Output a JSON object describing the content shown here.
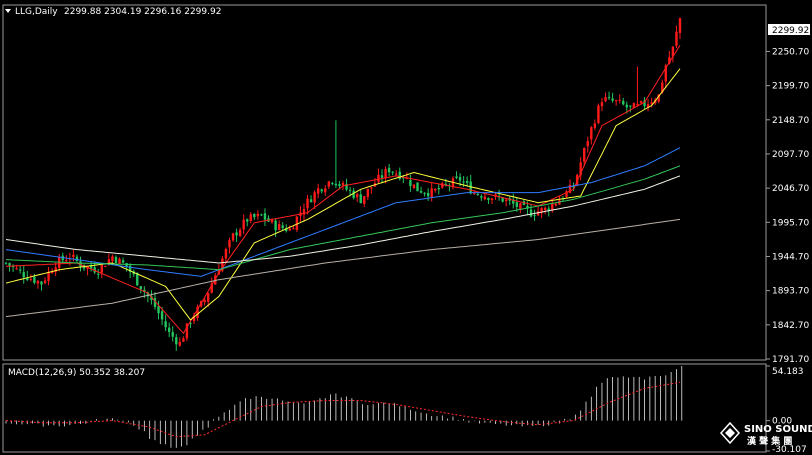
{
  "header": {
    "symbol": "LLG,Daily",
    "ohlc": "2299.88 2304.19 2296.16 2299.92"
  },
  "current_price_label": "2299.92",
  "macd_header": "MACD(12,26,9) 50.352 38.207",
  "watermark": {
    "brand": "SINO SOUND",
    "sub": "漢 聲 集 團"
  },
  "colors": {
    "background": "#000000",
    "bull": "#ff1a1a",
    "bear": "#22c55e",
    "ma_fast": "#ff2020",
    "ma_yellow": "#ffff40",
    "ma_blue": "#2f7cff",
    "ma_green": "#34c759",
    "ma_white": "#f2f2e6",
    "ma_gray": "#b8b0a8",
    "macd_hist": "#e8e8e8",
    "macd_signal": "#ff2a2a",
    "axis_text": "#ffffff"
  },
  "chart_data": [
    {
      "type": "candlestick",
      "title": "LLG,Daily",
      "ylim": [
        1791.7,
        2320
      ],
      "y_ticks": [
        {
          "value": 2250.7,
          "label": "2250.70"
        },
        {
          "value": 2199.7,
          "label": "2199.70"
        },
        {
          "value": 2148.7,
          "label": "2148.70"
        },
        {
          "value": 2097.7,
          "label": "2097.70"
        },
        {
          "value": 2046.7,
          "label": "2046.70"
        },
        {
          "value": 1995.7,
          "label": "1995.70"
        },
        {
          "value": 1944.7,
          "label": "1944.70"
        },
        {
          "value": 1893.7,
          "label": "1893.70"
        },
        {
          "value": 1842.7,
          "label": "1842.70"
        },
        {
          "value": 1791.7,
          "label": "1791.70"
        }
      ],
      "close_waypoints": [
        [
          0,
          1935
        ],
        [
          6,
          1915
        ],
        [
          10,
          1905
        ],
        [
          14,
          1935
        ],
        [
          18,
          1945
        ],
        [
          22,
          1930
        ],
        [
          26,
          1925
        ],
        [
          30,
          1945
        ],
        [
          34,
          1930
        ],
        [
          38,
          1900
        ],
        [
          42,
          1870
        ],
        [
          46,
          1830
        ],
        [
          49,
          1815
        ],
        [
          52,
          1850
        ],
        [
          56,
          1880
        ],
        [
          60,
          1930
        ],
        [
          64,
          1975
        ],
        [
          68,
          2000
        ],
        [
          72,
          2005
        ],
        [
          76,
          1990
        ],
        [
          80,
          1985
        ],
        [
          84,
          2020
        ],
        [
          88,
          2045
        ],
        [
          92,
          2060
        ],
        [
          96,
          2045
        ],
        [
          100,
          2030
        ],
        [
          104,
          2055
        ],
        [
          108,
          2075
        ],
        [
          112,
          2065
        ],
        [
          116,
          2045
        ],
        [
          120,
          2040
        ],
        [
          124,
          2050
        ],
        [
          128,
          2060
        ],
        [
          132,
          2040
        ],
        [
          136,
          2035
        ],
        [
          140,
          2030
        ],
        [
          144,
          2020
        ],
        [
          148,
          2010
        ],
        [
          152,
          2015
        ],
        [
          156,
          2030
        ],
        [
          160,
          2050
        ],
        [
          164,
          2120
        ],
        [
          168,
          2180
        ],
        [
          172,
          2175
        ],
        [
          176,
          2165
        ],
        [
          180,
          2172
        ],
        [
          184,
          2185
        ],
        [
          186,
          2230
        ],
        [
          188,
          2255
        ],
        [
          190,
          2300
        ]
      ],
      "ma_lines": [
        {
          "key": "ma_fast",
          "points": [
            [
              0,
              1930
            ],
            [
              20,
              1935
            ],
            [
              40,
              1890
            ],
            [
              50,
              1830
            ],
            [
              60,
              1920
            ],
            [
              70,
              1995
            ],
            [
              85,
              2010
            ],
            [
              95,
              2050
            ],
            [
              110,
              2065
            ],
            [
              130,
              2045
            ],
            [
              150,
              2020
            ],
            [
              160,
              2045
            ],
            [
              168,
              2140
            ],
            [
              180,
              2175
            ],
            [
              190,
              2260
            ]
          ]
        },
        {
          "key": "ma_yellow",
          "points": [
            [
              0,
              1905
            ],
            [
              15,
              1925
            ],
            [
              30,
              1935
            ],
            [
              45,
              1900
            ],
            [
              52,
              1850
            ],
            [
              60,
              1885
            ],
            [
              70,
              1965
            ],
            [
              85,
              2000
            ],
            [
              100,
              2045
            ],
            [
              115,
              2070
            ],
            [
              130,
              2050
            ],
            [
              150,
              2025
            ],
            [
              162,
              2035
            ],
            [
              172,
              2140
            ],
            [
              182,
              2170
            ],
            [
              190,
              2225
            ]
          ]
        },
        {
          "key": "ma_blue",
          "points": [
            [
              0,
              1955
            ],
            [
              20,
              1940
            ],
            [
              40,
              1925
            ],
            [
              55,
              1915
            ],
            [
              70,
              1945
            ],
            [
              90,
              1985
            ],
            [
              110,
              2025
            ],
            [
              130,
              2040
            ],
            [
              150,
              2040
            ],
            [
              165,
              2055
            ],
            [
              180,
              2080
            ],
            [
              190,
              2107
            ]
          ]
        },
        {
          "key": "ma_green",
          "points": [
            [
              0,
              1940
            ],
            [
              20,
              1935
            ],
            [
              40,
              1932
            ],
            [
              60,
              1925
            ],
            [
              80,
              1955
            ],
            [
              100,
              1975
            ],
            [
              120,
              1995
            ],
            [
              140,
              2010
            ],
            [
              160,
              2030
            ],
            [
              180,
              2060
            ],
            [
              190,
              2080
            ]
          ]
        },
        {
          "key": "ma_white",
          "points": [
            [
              0,
              1970
            ],
            [
              20,
              1955
            ],
            [
              40,
              1945
            ],
            [
              60,
              1935
            ],
            [
              80,
              1945
            ],
            [
              100,
              1962
            ],
            [
              120,
              1982
            ],
            [
              140,
              2000
            ],
            [
              160,
              2020
            ],
            [
              180,
              2045
            ],
            [
              190,
              2065
            ]
          ]
        },
        {
          "key": "ma_gray",
          "points": [
            [
              0,
              1855
            ],
            [
              30,
              1875
            ],
            [
              60,
              1910
            ],
            [
              90,
              1935
            ],
            [
              120,
              1955
            ],
            [
              150,
              1970
            ],
            [
              170,
              1985
            ],
            [
              190,
              2000
            ]
          ]
        }
      ]
    },
    {
      "type": "bar",
      "title": "MACD(12,26,9)",
      "series": [
        {
          "name": "MACD",
          "value": 50.352
        },
        {
          "name": "Signal",
          "value": 38.207
        }
      ],
      "ylim": [
        -30.107,
        54.183
      ],
      "y_ticks": [
        {
          "value": 54.183,
          "label": "54.183"
        },
        {
          "value": 0.0,
          "label": "0.00"
        },
        {
          "value": -30.107,
          "label": "-30.107"
        }
      ],
      "hist_waypoints": [
        [
          0,
          -2
        ],
        [
          8,
          -4
        ],
        [
          16,
          -5
        ],
        [
          22,
          -3
        ],
        [
          28,
          2
        ],
        [
          34,
          0
        ],
        [
          38,
          -8
        ],
        [
          42,
          -20
        ],
        [
          47,
          -28
        ],
        [
          52,
          -22
        ],
        [
          56,
          -10
        ],
        [
          60,
          4
        ],
        [
          64,
          14
        ],
        [
          68,
          22
        ],
        [
          72,
          24
        ],
        [
          76,
          22
        ],
        [
          80,
          18
        ],
        [
          84,
          16
        ],
        [
          88,
          20
        ],
        [
          92,
          26
        ],
        [
          96,
          24
        ],
        [
          100,
          18
        ],
        [
          104,
          16
        ],
        [
          108,
          18
        ],
        [
          112,
          14
        ],
        [
          116,
          10
        ],
        [
          120,
          6
        ],
        [
          124,
          4
        ],
        [
          128,
          2
        ],
        [
          132,
          -2
        ],
        [
          136,
          -3
        ],
        [
          140,
          -4
        ],
        [
          144,
          -5
        ],
        [
          148,
          -6
        ],
        [
          152,
          -4
        ],
        [
          156,
          -2
        ],
        [
          160,
          4
        ],
        [
          164,
          18
        ],
        [
          168,
          38
        ],
        [
          172,
          44
        ],
        [
          176,
          42
        ],
        [
          180,
          42
        ],
        [
          184,
          44
        ],
        [
          188,
          48
        ],
        [
          190,
          54
        ]
      ],
      "signal_waypoints": [
        [
          0,
          0
        ],
        [
          10,
          -2
        ],
        [
          20,
          -2
        ],
        [
          30,
          0
        ],
        [
          40,
          -6
        ],
        [
          48,
          -16
        ],
        [
          56,
          -14
        ],
        [
          64,
          0
        ],
        [
          72,
          14
        ],
        [
          80,
          18
        ],
        [
          90,
          20
        ],
        [
          100,
          20
        ],
        [
          110,
          16
        ],
        [
          120,
          10
        ],
        [
          130,
          4
        ],
        [
          140,
          -1
        ],
        [
          150,
          -4
        ],
        [
          160,
          0
        ],
        [
          170,
          18
        ],
        [
          180,
          32
        ],
        [
          190,
          38
        ]
      ]
    }
  ]
}
